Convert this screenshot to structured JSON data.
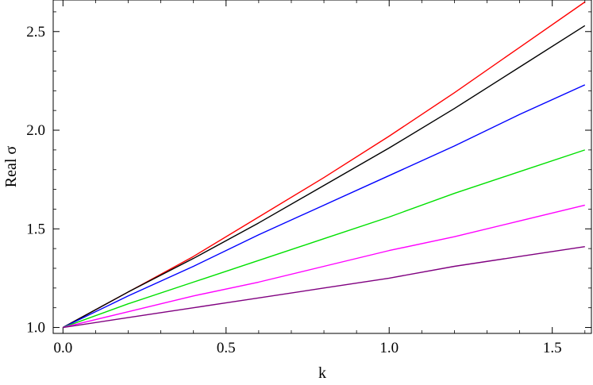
{
  "chart_data": {
    "type": "line",
    "title": "",
    "xlabel": "k",
    "ylabel": "Real σ",
    "xlim": [
      -0.03,
      1.62
    ],
    "ylim": [
      0.97,
      2.66
    ],
    "xticks": [
      0.0,
      0.5,
      1.0,
      1.5
    ],
    "xtick_labels": [
      "0.0",
      "0.5",
      "1.0",
      "1.5"
    ],
    "yticks": [
      1.0,
      1.5,
      2.0,
      2.5
    ],
    "ytick_labels": [
      "1.0",
      "1.5",
      "2.0",
      "2.5"
    ],
    "grid": false,
    "series": [
      {
        "color": "#ff0000",
        "x": [
          0,
          0.2,
          0.4,
          0.6,
          0.8,
          1.0,
          1.2,
          1.4,
          1.6
        ],
        "values": [
          1.0,
          1.18,
          1.36,
          1.56,
          1.76,
          1.97,
          2.19,
          2.42,
          2.65
        ]
      },
      {
        "color": "#000000",
        "x": [
          0,
          0.2,
          0.4,
          0.6,
          0.8,
          1.0,
          1.2,
          1.4,
          1.6
        ],
        "values": [
          1.0,
          1.18,
          1.35,
          1.53,
          1.72,
          1.91,
          2.11,
          2.32,
          2.53
        ]
      },
      {
        "color": "#0000ff",
        "x": [
          0,
          0.2,
          0.4,
          0.6,
          0.8,
          1.0,
          1.2,
          1.4,
          1.6
        ],
        "values": [
          1.0,
          1.16,
          1.31,
          1.47,
          1.62,
          1.77,
          1.92,
          2.08,
          2.23
        ]
      },
      {
        "color": "#00e000",
        "x": [
          0,
          0.2,
          0.4,
          0.6,
          0.8,
          1.0,
          1.2,
          1.4,
          1.6
        ],
        "values": [
          1.0,
          1.12,
          1.23,
          1.34,
          1.45,
          1.56,
          1.68,
          1.79,
          1.9
        ]
      },
      {
        "color": "#ff00ff",
        "x": [
          0,
          0.2,
          0.4,
          0.6,
          0.8,
          1.0,
          1.2,
          1.4,
          1.6
        ],
        "values": [
          1.0,
          1.08,
          1.16,
          1.23,
          1.31,
          1.39,
          1.46,
          1.54,
          1.62
        ]
      },
      {
        "color": "#800080",
        "x": [
          0,
          0.2,
          0.4,
          0.6,
          0.8,
          1.0,
          1.2,
          1.4,
          1.6
        ],
        "values": [
          1.0,
          1.05,
          1.1,
          1.15,
          1.2,
          1.25,
          1.31,
          1.36,
          1.41
        ]
      }
    ]
  }
}
